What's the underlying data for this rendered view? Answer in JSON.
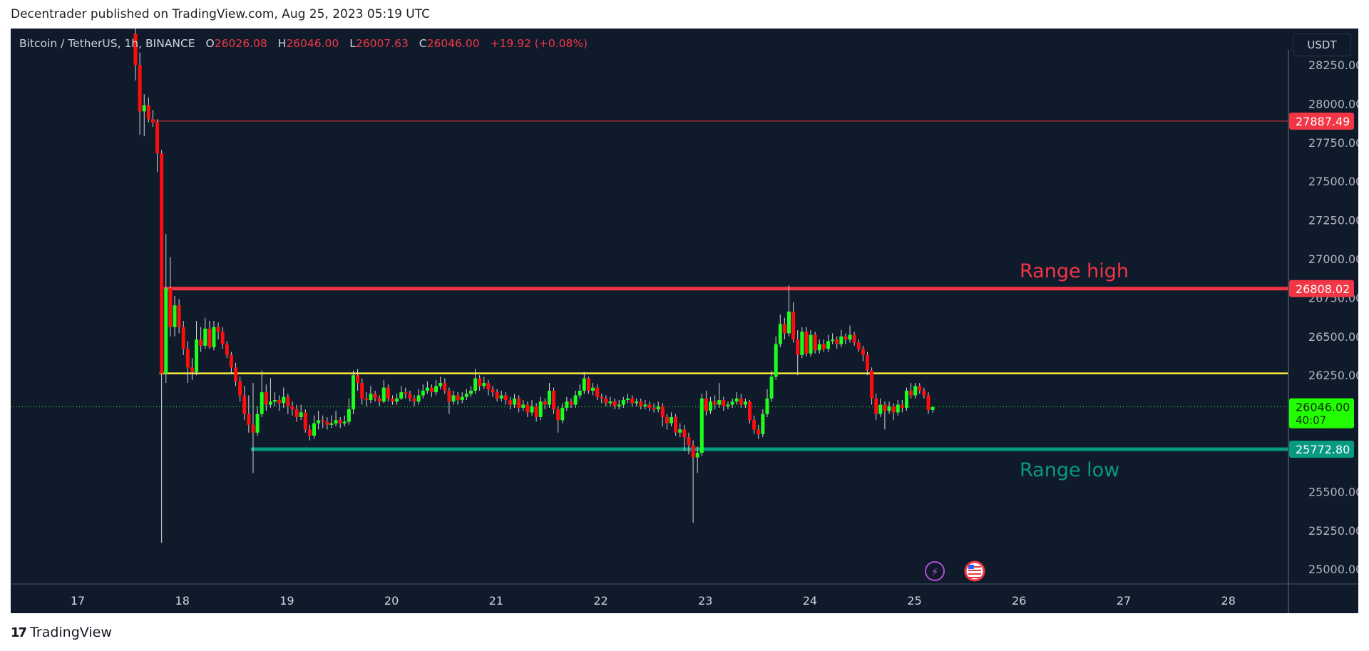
{
  "header": {
    "published": "Decentrader published on TradingView.com, Aug 25, 2023 05:19 UTC"
  },
  "legend": {
    "symbol": "Bitcoin / TetherUS, 1h, BINANCE",
    "o_label": "O",
    "o": "26026.08",
    "h_label": "H",
    "h": "26046.00",
    "l_label": "L",
    "l": "26007.63",
    "c_label": "C",
    "c": "26046.00",
    "change": "+19.92 (+0.08%)"
  },
  "currency_button": "USDT",
  "footer": {
    "brand": "TradingView"
  },
  "colors": {
    "background": "#0f1a2b",
    "up": "#1cff1c",
    "down": "#ff0d0d",
    "range_high": "#f23645",
    "range_low": "#089981",
    "mid_line": "#ffeb3b",
    "current_price": "#22ff00"
  },
  "chart_data": {
    "type": "candlestick",
    "interval": "1h",
    "first_candle": "2023-08-17 13:00",
    "ylim": [
      24900,
      28340
    ],
    "y_ticks": [
      "28250.00",
      "28000.00",
      "27750.00",
      "27500.00",
      "27250.00",
      "27000.00",
      "26750.00",
      "26500.00",
      "26250.00",
      "25500.00",
      "25250.00",
      "25000.00"
    ],
    "y_tick_values": [
      28250,
      28000,
      27750,
      27500,
      27250,
      27000,
      26750,
      26500,
      26250,
      25500,
      25250,
      25000
    ],
    "x_ticks": [
      "17",
      "18",
      "19",
      "20",
      "21",
      "22",
      "23",
      "24",
      "25",
      "26",
      "27",
      "28"
    ],
    "grid": false,
    "levels": [
      {
        "name": "prior-high",
        "price": 27887.49,
        "label": "27887.49",
        "color": "#f23645",
        "start_index": 4
      },
      {
        "name": "range-high",
        "price": 26808.02,
        "label": "26808.02",
        "color": "#f23645",
        "start_index": 7,
        "annotation": "Range high"
      },
      {
        "name": "mid-range",
        "price": 26262,
        "color": "#ffeb3b",
        "start_index": 6
      },
      {
        "name": "range-low",
        "price": 25772.8,
        "label": "25772.80",
        "color": "#089981",
        "start_index": 27,
        "annotation": "Range low"
      }
    ],
    "last_price": {
      "price": 26046.0,
      "label": "26046.00",
      "countdown": "40:07"
    },
    "candles": [
      [
        28450,
        28600,
        28150,
        28250
      ],
      [
        28250,
        28330,
        27800,
        27950
      ],
      [
        27950,
        28060,
        27790,
        27990
      ],
      [
        27990,
        28040,
        27880,
        27900
      ],
      [
        27900,
        27960,
        27850,
        27880
      ],
      [
        27880,
        27900,
        27560,
        27680
      ],
      [
        27680,
        27700,
        25170,
        26260
      ],
      [
        26260,
        27160,
        26200,
        26810
      ],
      [
        26810,
        27010,
        26500,
        26560
      ],
      [
        26560,
        26760,
        26500,
        26700
      ],
      [
        26700,
        26740,
        26520,
        26560
      ],
      [
        26560,
        26600,
        26380,
        26420
      ],
      [
        26420,
        26470,
        26200,
        26300
      ],
      [
        26300,
        26360,
        26220,
        26270
      ],
      [
        26270,
        26600,
        26250,
        26480
      ],
      [
        26480,
        26560,
        26400,
        26440
      ],
      [
        26440,
        26620,
        26420,
        26550
      ],
      [
        26550,
        26600,
        26420,
        26430
      ],
      [
        26430,
        26600,
        26410,
        26560
      ],
      [
        26560,
        26590,
        26480,
        26530
      ],
      [
        26530,
        26560,
        26420,
        26450
      ],
      [
        26450,
        26470,
        26360,
        26380
      ],
      [
        26380,
        26400,
        26260,
        26300
      ],
      [
        26300,
        26330,
        26180,
        26210
      ],
      [
        26210,
        26240,
        26080,
        26120
      ],
      [
        26120,
        26180,
        25960,
        26000
      ],
      [
        26000,
        26120,
        25880,
        25930
      ],
      [
        25930,
        26200,
        25620,
        25880
      ],
      [
        25880,
        26050,
        25860,
        26000
      ],
      [
        26000,
        26280,
        25980,
        26140
      ],
      [
        26140,
        26190,
        26020,
        26060
      ],
      [
        26060,
        26230,
        26040,
        26080
      ],
      [
        26080,
        26140,
        26050,
        26090
      ],
      [
        26090,
        26120,
        26020,
        26070
      ],
      [
        26070,
        26170,
        26040,
        26110
      ],
      [
        26110,
        26130,
        26000,
        26050
      ],
      [
        26050,
        26080,
        25990,
        26030
      ],
      [
        26030,
        26060,
        25950,
        25980
      ],
      [
        25980,
        26060,
        25960,
        26010
      ],
      [
        26010,
        26030,
        25880,
        25900
      ],
      [
        25900,
        25930,
        25830,
        25860
      ],
      [
        25860,
        25990,
        25840,
        25940
      ],
      [
        25940,
        26020,
        25900,
        25960
      ],
      [
        25960,
        25990,
        25910,
        25950
      ],
      [
        25950,
        25980,
        25900,
        25930
      ],
      [
        25930,
        25990,
        25910,
        25940
      ],
      [
        25940,
        26020,
        25920,
        25960
      ],
      [
        25960,
        25980,
        25910,
        25940
      ],
      [
        25940,
        25990,
        25920,
        25950
      ],
      [
        25950,
        26100,
        25930,
        26030
      ],
      [
        26030,
        26280,
        26000,
        26250
      ],
      [
        26250,
        26290,
        26150,
        26200
      ],
      [
        26200,
        26230,
        26060,
        26100
      ],
      [
        26100,
        26140,
        26050,
        26090
      ],
      [
        26090,
        26180,
        26070,
        26130
      ],
      [
        26130,
        26150,
        26080,
        26100
      ],
      [
        26100,
        26120,
        26050,
        26080
      ],
      [
        26080,
        26220,
        26070,
        26170
      ],
      [
        26170,
        26190,
        26080,
        26100
      ],
      [
        26100,
        26120,
        26060,
        26080
      ],
      [
        26080,
        26130,
        26060,
        26100
      ],
      [
        26100,
        26180,
        26090,
        26140
      ],
      [
        26140,
        26170,
        26100,
        26130
      ],
      [
        26130,
        26150,
        26080,
        26100
      ],
      [
        26100,
        26120,
        26050,
        26080
      ],
      [
        26080,
        26160,
        26060,
        26120
      ],
      [
        26120,
        26190,
        26100,
        26150
      ],
      [
        26150,
        26210,
        26130,
        26170
      ],
      [
        26170,
        26190,
        26110,
        26140
      ],
      [
        26140,
        26220,
        26120,
        26180
      ],
      [
        26180,
        26240,
        26160,
        26200
      ],
      [
        26200,
        26230,
        26130,
        26150
      ],
      [
        26150,
        26170,
        26000,
        26080
      ],
      [
        26080,
        26150,
        26060,
        26120
      ],
      [
        26120,
        26140,
        26060,
        26090
      ],
      [
        26090,
        26140,
        26070,
        26110
      ],
      [
        26110,
        26160,
        26090,
        26130
      ],
      [
        26130,
        26180,
        26110,
        26150
      ],
      [
        26150,
        26290,
        26130,
        26230
      ],
      [
        26230,
        26250,
        26150,
        26180
      ],
      [
        26180,
        26240,
        26160,
        26200
      ],
      [
        26200,
        26220,
        26120,
        26160
      ],
      [
        26160,
        26180,
        26110,
        26140
      ],
      [
        26140,
        26160,
        26080,
        26100
      ],
      [
        26100,
        26150,
        26080,
        26120
      ],
      [
        26120,
        26140,
        26060,
        26090
      ],
      [
        26090,
        26110,
        26030,
        26060
      ],
      [
        26060,
        26130,
        26040,
        26100
      ],
      [
        26100,
        26120,
        26010,
        26040
      ],
      [
        26040,
        26090,
        26020,
        26060
      ],
      [
        26060,
        26080,
        25980,
        26010
      ],
      [
        26010,
        26090,
        25990,
        26050
      ],
      [
        26050,
        26070,
        25950,
        25980
      ],
      [
        25980,
        26110,
        25960,
        26080
      ],
      [
        26080,
        26100,
        26030,
        26060
      ],
      [
        26060,
        26200,
        26040,
        26150
      ],
      [
        26150,
        26170,
        26000,
        26030
      ],
      [
        26030,
        26050,
        25880,
        25960
      ],
      [
        25960,
        26070,
        25940,
        26040
      ],
      [
        26040,
        26110,
        26020,
        26080
      ],
      [
        26080,
        26100,
        26040,
        26060
      ],
      [
        26060,
        26150,
        26040,
        26120
      ],
      [
        26120,
        26190,
        26100,
        26150
      ],
      [
        26150,
        26270,
        26130,
        26230
      ],
      [
        26230,
        26240,
        26130,
        26150
      ],
      [
        26150,
        26200,
        26120,
        26170
      ],
      [
        26170,
        26190,
        26090,
        26110
      ],
      [
        26110,
        26130,
        26070,
        26100
      ],
      [
        26100,
        26120,
        26050,
        26070
      ],
      [
        26070,
        26110,
        26050,
        26080
      ],
      [
        26080,
        26100,
        26030,
        26050
      ],
      [
        26050,
        26090,
        26030,
        26060
      ],
      [
        26060,
        26110,
        26040,
        26090
      ],
      [
        26090,
        26130,
        26070,
        26100
      ],
      [
        26100,
        26120,
        26050,
        26070
      ],
      [
        26070,
        26100,
        26050,
        26080
      ],
      [
        26080,
        26100,
        26030,
        26050
      ],
      [
        26050,
        26090,
        26030,
        26060
      ],
      [
        26060,
        26080,
        26020,
        26040
      ],
      [
        26040,
        26070,
        26010,
        26030
      ],
      [
        26030,
        26080,
        26010,
        26050
      ],
      [
        26050,
        26070,
        25920,
        25980
      ],
      [
        25980,
        26000,
        25900,
        25940
      ],
      [
        25940,
        26010,
        25920,
        25980
      ],
      [
        25980,
        26000,
        25860,
        25880
      ],
      [
        25880,
        25940,
        25850,
        25900
      ],
      [
        25900,
        25930,
        25760,
        25850
      ],
      [
        25850,
        25880,
        25740,
        25800
      ],
      [
        25800,
        25830,
        25300,
        25720
      ],
      [
        25720,
        25790,
        25620,
        25750
      ],
      [
        25750,
        26130,
        25730,
        26100
      ],
      [
        26100,
        26150,
        25990,
        26020
      ],
      [
        26020,
        26110,
        26000,
        26080
      ],
      [
        26080,
        26120,
        26030,
        26060
      ],
      [
        26060,
        26200,
        26040,
        26090
      ],
      [
        26090,
        26110,
        26020,
        26050
      ],
      [
        26050,
        26080,
        26030,
        26060
      ],
      [
        26060,
        26100,
        26040,
        26080
      ],
      [
        26080,
        26140,
        26060,
        26100
      ],
      [
        26100,
        26130,
        26040,
        26060
      ],
      [
        26060,
        26100,
        26040,
        26080
      ],
      [
        26080,
        26090,
        25940,
        25960
      ],
      [
        25960,
        25990,
        25870,
        25900
      ],
      [
        25900,
        25930,
        25840,
        25870
      ],
      [
        25870,
        26030,
        25850,
        26000
      ],
      [
        26000,
        26160,
        25980,
        26100
      ],
      [
        26100,
        26280,
        26080,
        26240
      ],
      [
        26240,
        26500,
        26220,
        26450
      ],
      [
        26450,
        26640,
        26430,
        26580
      ],
      [
        26580,
        26620,
        26480,
        26520
      ],
      [
        26520,
        26830,
        26500,
        26660
      ],
      [
        26660,
        26720,
        26460,
        26480
      ],
      [
        26480,
        26540,
        26250,
        26380
      ],
      [
        26380,
        26560,
        26360,
        26530
      ],
      [
        26530,
        26560,
        26370,
        26390
      ],
      [
        26390,
        26540,
        26370,
        26510
      ],
      [
        26510,
        26530,
        26390,
        26410
      ],
      [
        26410,
        26480,
        26390,
        26450
      ],
      [
        26450,
        26480,
        26400,
        26420
      ],
      [
        26420,
        26510,
        26400,
        26470
      ],
      [
        26470,
        26520,
        26450,
        26480
      ],
      [
        26480,
        26500,
        26420,
        26450
      ],
      [
        26450,
        26540,
        26430,
        26500
      ],
      [
        26500,
        26520,
        26450,
        26480
      ],
      [
        26480,
        26570,
        26460,
        26510
      ],
      [
        26510,
        26530,
        26440,
        26460
      ],
      [
        26460,
        26480,
        26400,
        26420
      ],
      [
        26420,
        26440,
        26340,
        26380
      ],
      [
        26380,
        26400,
        26250,
        26280
      ],
      [
        26280,
        26300,
        26060,
        26100
      ],
      [
        26100,
        26130,
        25960,
        26000
      ],
      [
        26000,
        26100,
        25980,
        26060
      ],
      [
        26060,
        26080,
        25900,
        26020
      ],
      [
        26020,
        26080,
        26000,
        26050
      ],
      [
        26050,
        26070,
        25960,
        26010
      ],
      [
        26010,
        26090,
        25990,
        26060
      ],
      [
        26060,
        26090,
        26010,
        26040
      ],
      [
        26040,
        26170,
        26020,
        26150
      ],
      [
        26150,
        26200,
        26100,
        26120
      ],
      [
        26120,
        26200,
        26100,
        26180
      ],
      [
        26180,
        26200,
        26130,
        26150
      ],
      [
        26150,
        26170,
        26100,
        26120
      ],
      [
        26120,
        26140,
        26000,
        26026.08
      ],
      [
        26026.08,
        26046,
        26007.63,
        26046
      ]
    ]
  }
}
